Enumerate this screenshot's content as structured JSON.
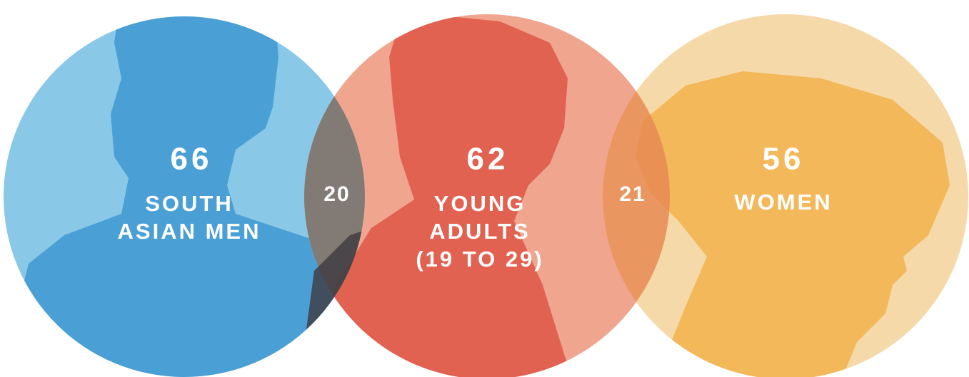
{
  "nodes": [
    {
      "value": 66,
      "label_lines": [
        "SOUTH",
        "ASIAN MEN"
      ]
    },
    {
      "value": 62,
      "label_lines": [
        "YOUNG",
        "ADULTS",
        "(19 TO 29)"
      ]
    },
    {
      "value": 56,
      "label_lines": [
        "WOMEN"
      ]
    }
  ],
  "overlaps": [
    {
      "value": 20
    },
    {
      "value": 21
    }
  ]
}
